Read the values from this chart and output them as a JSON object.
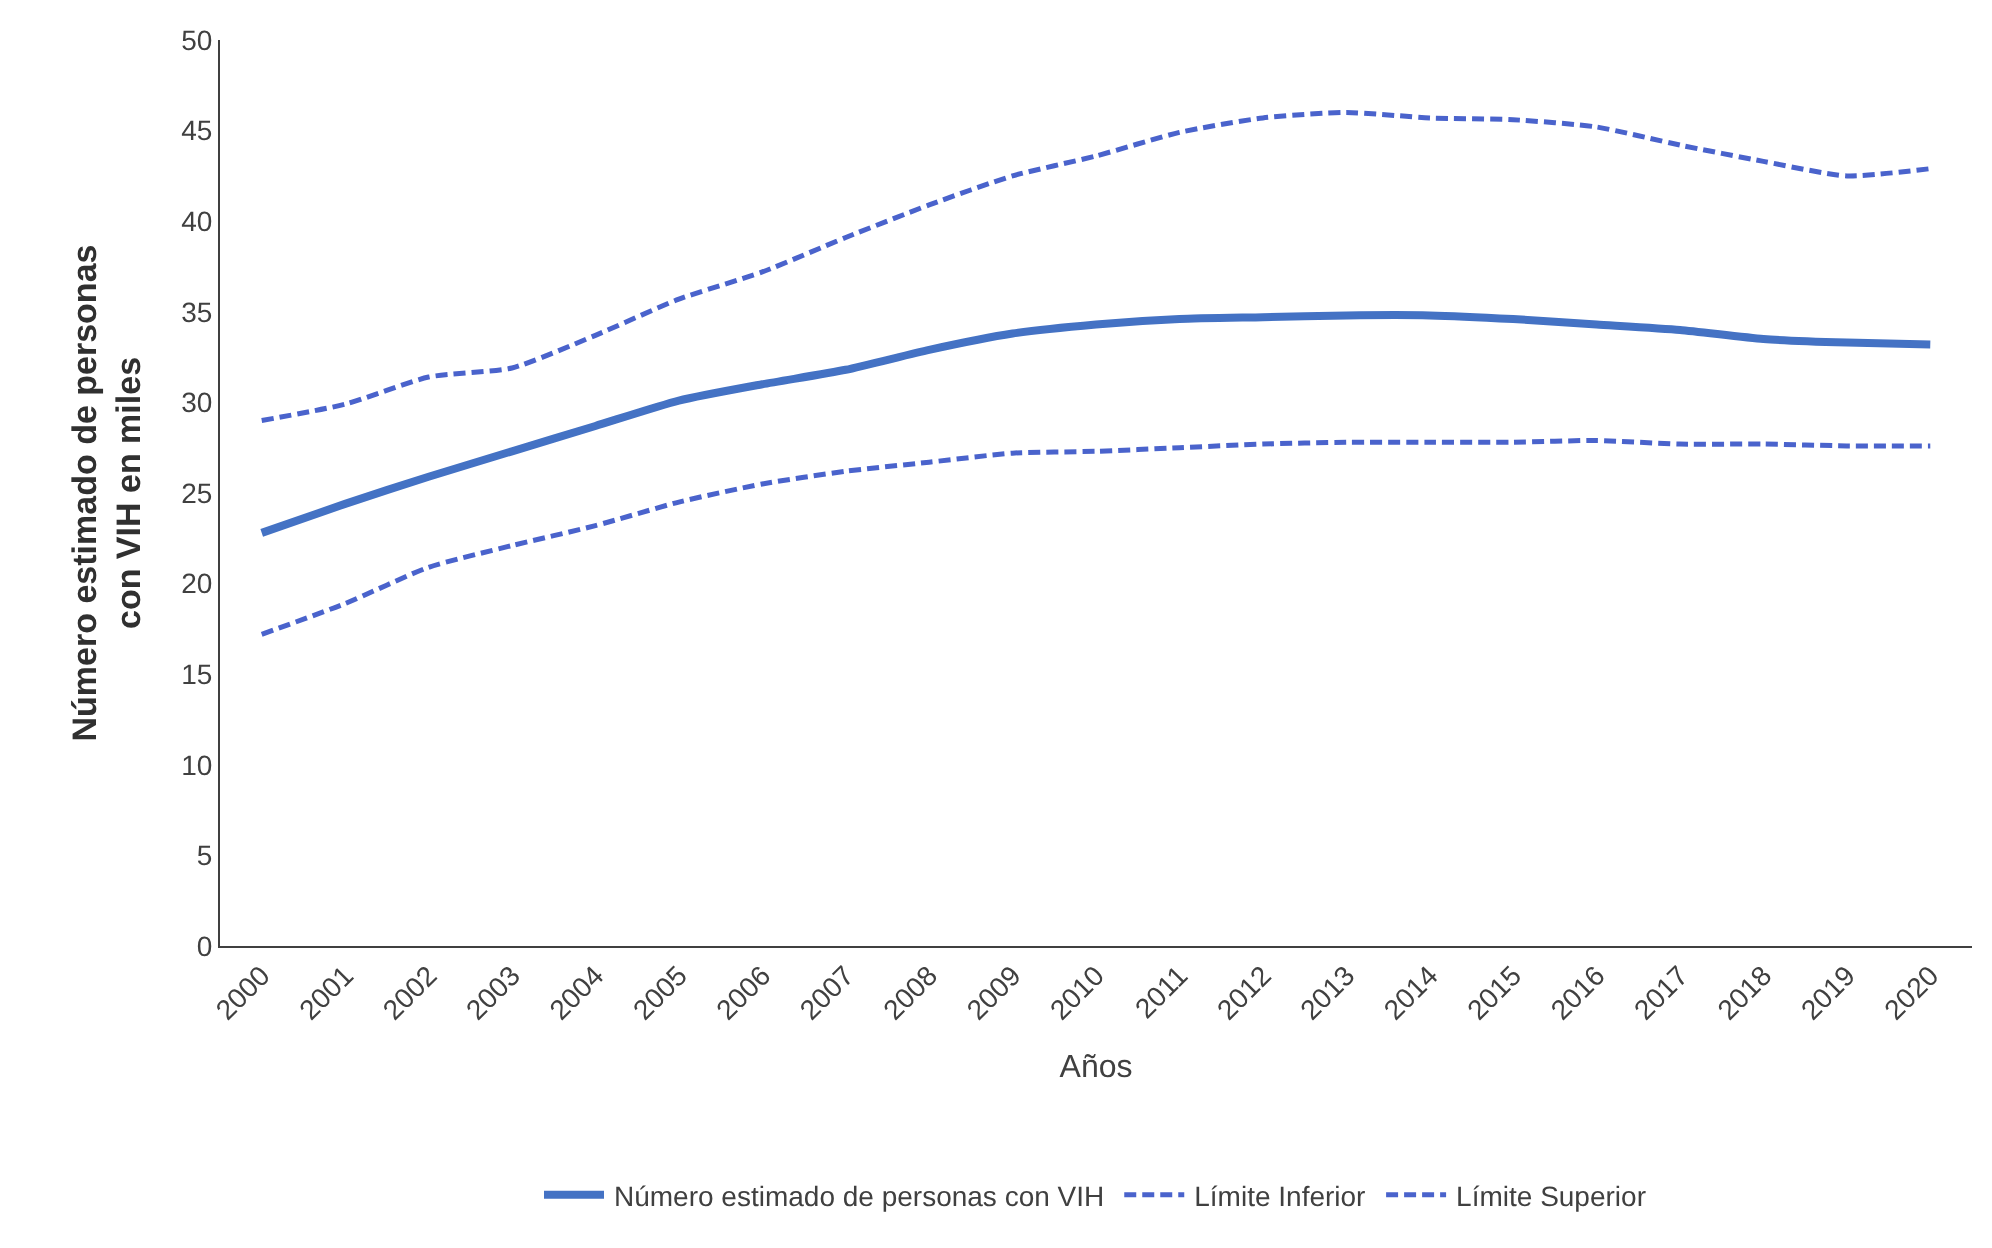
{
  "chart_data": {
    "type": "line",
    "xlabel": "Años",
    "ylabel": "Número estimado de personas con VIH en miles",
    "categories": [
      "2000",
      "2001",
      "2002",
      "2003",
      "2004",
      "2005",
      "2006",
      "2007",
      "2008",
      "2009",
      "2010",
      "2011",
      "2012",
      "2013",
      "2014",
      "2015",
      "2016",
      "2017",
      "2018",
      "2019",
      "2020"
    ],
    "series": [
      {
        "name": "Número estimado de personas con VIH",
        "color": "#4472c4",
        "line_style": "solid",
        "values": [
          22.8,
          24.4,
          25.9,
          27.3,
          28.7,
          30.1,
          31.0,
          31.8,
          32.9,
          33.8,
          34.3,
          34.6,
          34.7,
          34.8,
          34.8,
          34.6,
          34.3,
          34.0,
          33.5,
          33.3,
          33.2
        ]
      },
      {
        "name": "Límite Inferior",
        "color": "#4a63cc",
        "line_style": "dashed",
        "values": [
          17.2,
          18.9,
          20.9,
          22.1,
          23.2,
          24.5,
          25.5,
          26.2,
          26.7,
          27.2,
          27.3,
          27.5,
          27.7,
          27.8,
          27.8,
          27.8,
          27.9,
          27.7,
          27.7,
          27.6,
          27.6
        ]
      },
      {
        "name": "Límite Superior",
        "color": "#4a63cc",
        "line_style": "dashed",
        "values": [
          29.0,
          29.9,
          31.4,
          31.9,
          33.7,
          35.7,
          37.2,
          39.1,
          40.9,
          42.5,
          43.6,
          44.9,
          45.7,
          46.0,
          45.7,
          45.6,
          45.2,
          44.2,
          43.3,
          42.5,
          42.9
        ]
      }
    ],
    "ylim": [
      0,
      50
    ],
    "yticks": [
      0,
      5,
      10,
      15,
      20,
      25,
      30,
      35,
      40,
      45,
      50
    ],
    "legend": "bottom",
    "marker": "none"
  }
}
